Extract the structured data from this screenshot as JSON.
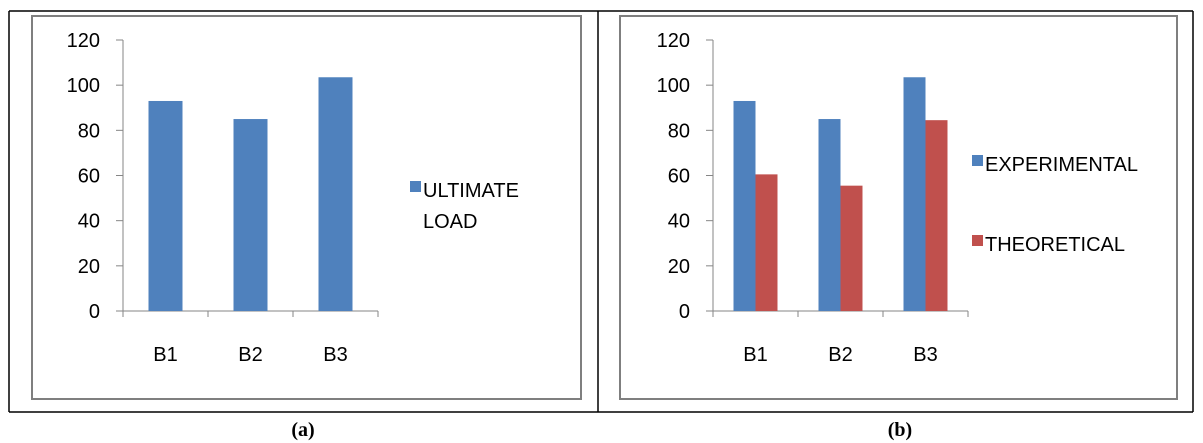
{
  "captions": [
    "(a)",
    "(b)"
  ],
  "colors": {
    "experimental": "#4F81BD",
    "theoretical": "#C0504D",
    "frame": "#7F7F7F"
  },
  "chart_data": [
    {
      "type": "bar",
      "categories": [
        "B1",
        "B2",
        "B3"
      ],
      "series": [
        {
          "name": "ULTIMATE LOAD",
          "values": [
            93,
            85,
            103.5
          ]
        }
      ],
      "legend_lines": [
        [
          "ULTIMATE",
          "LOAD"
        ]
      ],
      "yticks": [
        "0",
        "20",
        "40",
        "60",
        "80",
        "100",
        "120"
      ],
      "ylim": [
        0,
        120
      ],
      "grid": false,
      "legend": "right"
    },
    {
      "type": "bar",
      "categories": [
        "B1",
        "B2",
        "B3"
      ],
      "series": [
        {
          "name": "EXPERIMENTAL",
          "values": [
            93,
            85,
            103.5
          ]
        },
        {
          "name": "THEORETICAL",
          "values": [
            60.5,
            55.5,
            84.5
          ]
        }
      ],
      "legend_lines": [
        [
          "EXPERIMENTAL"
        ],
        [
          "THEORETICAL"
        ]
      ],
      "yticks": [
        "0",
        "20",
        "40",
        "60",
        "80",
        "100",
        "120"
      ],
      "ylim": [
        0,
        120
      ],
      "grid": false,
      "legend": "right"
    }
  ]
}
